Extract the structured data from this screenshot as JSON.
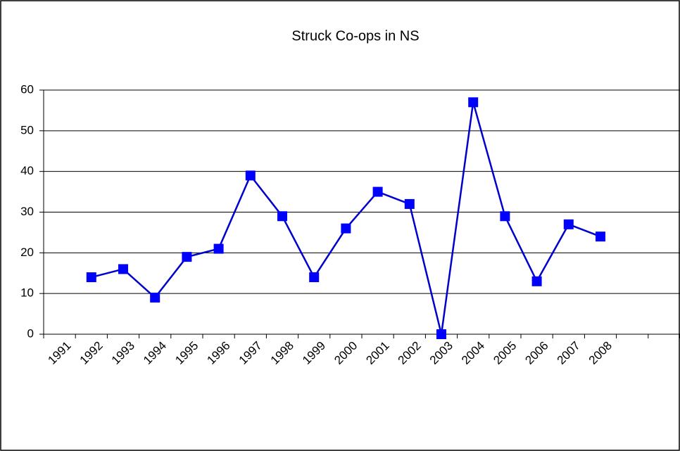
{
  "chart_data": {
    "type": "line",
    "title": "Struck Co-ops in NS",
    "categories": [
      "1991",
      "1992",
      "1993",
      "1994",
      "1995",
      "1996",
      "1997",
      "1998",
      "1999",
      "2000",
      "2001",
      "2002",
      "2003",
      "2004",
      "2005",
      "2006",
      "2007",
      "2008",
      null,
      null
    ],
    "series": [
      {
        "name": "Struck Co-ops",
        "color": "#0000ff",
        "values": [
          null,
          14,
          16,
          9,
          19,
          21,
          39,
          29,
          14,
          26,
          35,
          32,
          0,
          57,
          29,
          13,
          27,
          24,
          null,
          null
        ]
      }
    ],
    "ylim": [
      0,
      60
    ],
    "yticks": [
      0,
      10,
      20,
      30,
      40,
      50,
      60
    ],
    "grid": true
  }
}
